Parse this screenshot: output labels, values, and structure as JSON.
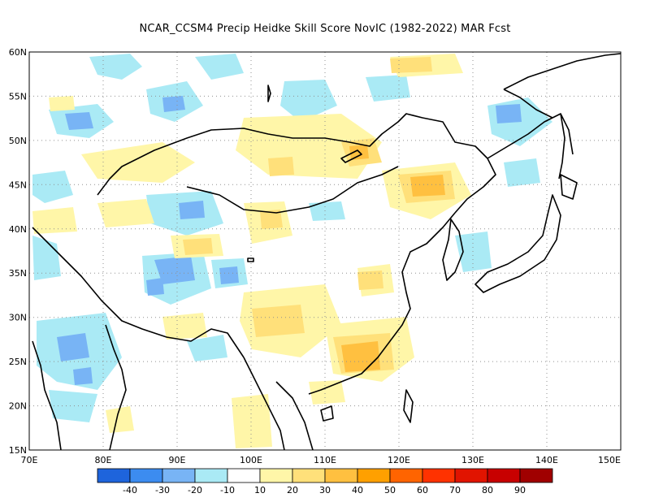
{
  "title": "NCAR_CCSM4 Precip Heidke Skill Score NovIC (1982-2022) MAR Fcst",
  "axes": {
    "lon_range": [
      70,
      150
    ],
    "lat_range": [
      15,
      60
    ],
    "lon_ticks": [
      "70E",
      "80E",
      "90E",
      "100E",
      "110E",
      "120E",
      "130E",
      "140E",
      "150E"
    ],
    "lat_ticks": [
      "15N",
      "20N",
      "25N",
      "30N",
      "35N",
      "40N",
      "45N",
      "50N",
      "55N",
      "60N"
    ]
  },
  "colorbar": {
    "colors": [
      "#1e64dc",
      "#3c8cf0",
      "#78b4f5",
      "#aaeaf5",
      "#ffffff",
      "#fff6a8",
      "#ffe07a",
      "#ffc040",
      "#ffa000",
      "#ff6400",
      "#ff3200",
      "#e11400",
      "#c80000",
      "#a00000"
    ],
    "labels": [
      "-40",
      "-30",
      "-20",
      "-10",
      "10",
      "20",
      "30",
      "40",
      "50",
      "60",
      "70",
      "80",
      "90"
    ]
  },
  "fields": {
    "positive_light": "#fff6a8",
    "positive_mid": "#ffe07a",
    "positive_strong": "#ffc040",
    "negative_light": "#aaeaf5",
    "negative_mid": "#78b4f5",
    "negative_strong": "#3c8cf0"
  }
}
